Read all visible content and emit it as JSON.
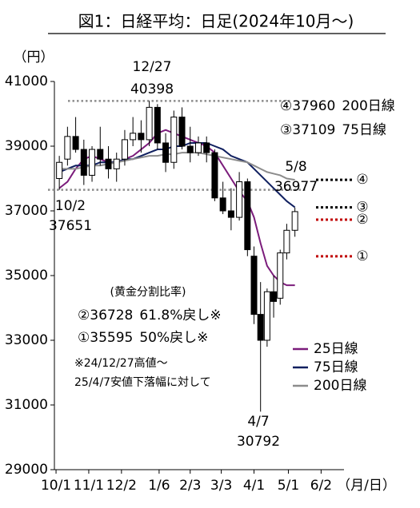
{
  "chart_data": {
    "type": "candlestick",
    "title": "図1：日経平均：日足(2024年10月～)",
    "y_label": "（円）",
    "x_label": "（月/日）",
    "x": [
      2,
      7,
      12,
      17,
      22,
      27,
      32,
      37,
      42,
      47,
      52,
      57,
      62,
      67,
      72,
      77,
      82,
      87,
      92,
      97,
      102,
      107,
      112,
      117,
      121,
      125,
      129,
      133,
      137,
      141,
      146
    ],
    "ohlc": {
      "open": [
        38000,
        38600,
        39300,
        38900,
        38100,
        38900,
        38600,
        38300,
        38600,
        39200,
        39400,
        39200,
        40200,
        39100,
        38500,
        39900,
        39000,
        38800,
        39100,
        38800,
        37400,
        37000,
        36800,
        37900,
        35600,
        33800,
        33000,
        34500,
        34300,
        35700,
        36400
      ],
      "high": [
        38700,
        39600,
        39900,
        39200,
        39000,
        39600,
        39000,
        38800,
        39500,
        39900,
        39800,
        40398,
        40300,
        39400,
        40100,
        40200,
        39600,
        39300,
        39300,
        38900,
        37900,
        37700,
        38200,
        38000,
        35900,
        34800,
        34600,
        35000,
        35800,
        36600,
        37100
      ],
      "low": [
        37651,
        38400,
        38800,
        37800,
        37900,
        38400,
        38000,
        37900,
        38400,
        39000,
        38800,
        39000,
        38900,
        38200,
        38300,
        38900,
        38500,
        38700,
        38500,
        37300,
        36900,
        36400,
        36700,
        35600,
        33500,
        30792,
        32800,
        33700,
        34100,
        35500,
        36200
      ],
      "close": [
        38500,
        39300,
        38900,
        38100,
        38900,
        38600,
        38300,
        38600,
        39200,
        39400,
        39200,
        40200,
        39100,
        38500,
        39900,
        39000,
        38800,
        39100,
        38800,
        37400,
        37000,
        36800,
        37900,
        35800,
        33800,
        33000,
        34500,
        34200,
        35700,
        36400,
        36977
      ]
    },
    "series": [
      {
        "name": "25日線",
        "color": "#7b1c7b",
        "values": [
          37700,
          37900,
          38300,
          38600,
          38700,
          38600,
          38500,
          38500,
          38600,
          38700,
          38900,
          39100,
          39400,
          39500,
          39400,
          39300,
          39200,
          39100,
          39000,
          38800,
          38400,
          38000,
          37600,
          37300,
          36800,
          36000,
          35300,
          35000,
          34800,
          34700,
          34700
        ]
      },
      {
        "name": "75日線",
        "color": "#0f1f5f",
        "values": [
          38200,
          38300,
          38400,
          38400,
          38400,
          38500,
          38500,
          38500,
          38600,
          38600,
          38700,
          38800,
          38900,
          38900,
          39000,
          39000,
          39100,
          39100,
          39100,
          39000,
          38900,
          38700,
          38600,
          38500,
          38300,
          38100,
          37900,
          37700,
          37500,
          37300,
          37110
        ]
      },
      {
        "name": "200日線",
        "color": "#8c8c8c",
        "values": [
          38300,
          38300,
          38300,
          38350,
          38400,
          38400,
          38450,
          38500,
          38550,
          38600,
          38650,
          38700,
          38700,
          38750,
          38750,
          38800,
          38800,
          38800,
          38750,
          38700,
          38650,
          38600,
          38550,
          38500,
          38400,
          38300,
          38200,
          38150,
          38100,
          38000,
          37960
        ]
      }
    ],
    "xlim": [
      -1,
      176
    ],
    "xticks": [
      {
        "value": 0,
        "label": "10/1"
      },
      {
        "value": 20,
        "label": "11/1"
      },
      {
        "value": 40,
        "label": "12/2"
      },
      {
        "value": 63,
        "label": "1/6"
      },
      {
        "value": 82,
        "label": "2/3"
      },
      {
        "value": 101,
        "label": "3/3"
      },
      {
        "value": 121,
        "label": "4/1"
      },
      {
        "value": 142,
        "label": "5/1"
      },
      {
        "value": 162,
        "label": "6/2"
      }
    ],
    "ylim": [
      29000,
      41000
    ],
    "yticks": [
      29000,
      31000,
      33000,
      35000,
      37000,
      39000,
      41000
    ],
    "points": [
      {
        "date": "12/27",
        "value": 40398
      },
      {
        "date": "10/2",
        "value": 37651
      },
      {
        "date": "5/8",
        "value": 36977
      },
      {
        "date": "4/7",
        "value": 30792
      }
    ],
    "ratio_title": "(黄金分割比率)",
    "levels": [
      {
        "marker": "④",
        "value": 37960,
        "desc": "200日線",
        "color": "#000000"
      },
      {
        "marker": "③",
        "value": 37109,
        "desc": "75日線",
        "color": "#000000"
      },
      {
        "marker": "②",
        "value": 36728,
        "desc": "61.8%戻し※",
        "color": "#c00000"
      },
      {
        "marker": "①",
        "value": 35595,
        "desc": "50%戻し※",
        "color": "#c00000"
      }
    ],
    "notes": [
      "※24/12/27高値～",
      "25/4/7安値下落幅に対して"
    ]
  }
}
